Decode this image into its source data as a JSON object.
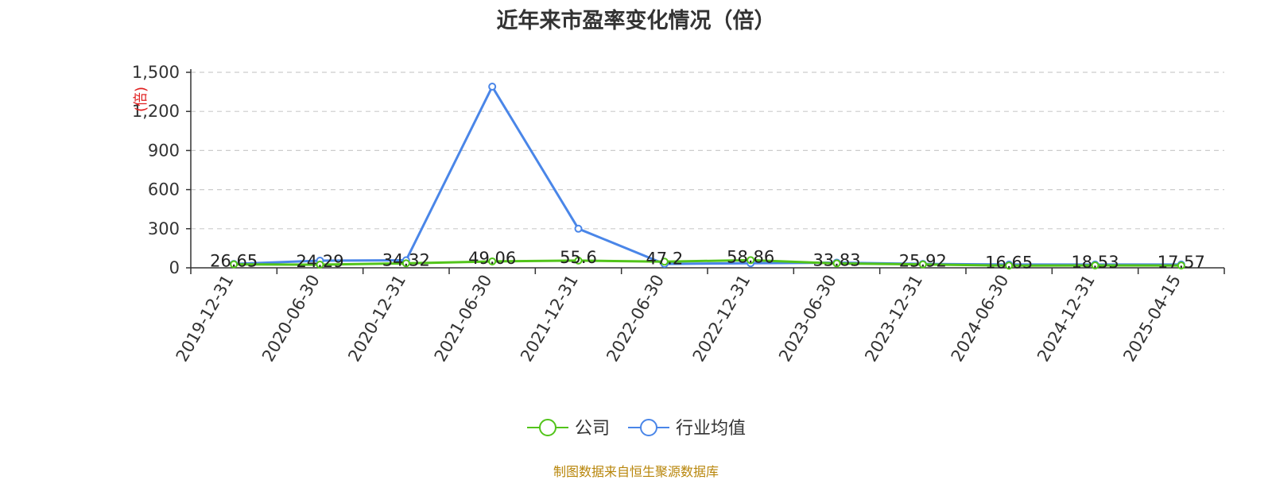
{
  "title": "近年来市盈率变化情况（倍）",
  "source_note": "制图数据来自恒生聚源数据库",
  "colors": {
    "company": "#52c41a",
    "industry": "#4a86e8",
    "unit_label": "#e02020",
    "source_note": "#b8860b",
    "grid": "#cccccc",
    "axis": "#333333"
  },
  "chart_data": {
    "type": "line",
    "title": "近年来市盈率变化情况（倍）",
    "ylabel": "(倍)",
    "xlabel": "",
    "categories": [
      "2019-12-31",
      "2020-06-30",
      "2020-12-31",
      "2021-06-30",
      "2021-12-31",
      "2022-06-30",
      "2022-12-31",
      "2023-06-30",
      "2023-12-31",
      "2024-06-30",
      "2024-12-31",
      "2025-04-15"
    ],
    "ylim": [
      0,
      1500
    ],
    "yticks": [
      0,
      300,
      600,
      900,
      1200,
      1500
    ],
    "ytick_labels": [
      "0",
      "300",
      "600",
      "900",
      "1,200",
      "1,500"
    ],
    "grid": true,
    "legend_position": "bottom",
    "series": [
      {
        "name": "公司",
        "color": "#52c41a",
        "values": [
          26.65,
          24.29,
          34.32,
          49.06,
          55.6,
          47.2,
          58.86,
          33.83,
          25.92,
          16.65,
          18.53,
          17.57
        ],
        "labels": [
          "26.65",
          "24.29",
          "34.32",
          "49.06",
          "55.6",
          "47.2",
          "58.86",
          "33.83",
          "25.92",
          "16.65",
          "18.53",
          "17.57"
        ]
      },
      {
        "name": "行业均值",
        "color": "#4a86e8",
        "values": [
          30,
          55,
          58,
          1390,
          300,
          30,
          35,
          40,
          30,
          25,
          25,
          25
        ]
      }
    ]
  }
}
